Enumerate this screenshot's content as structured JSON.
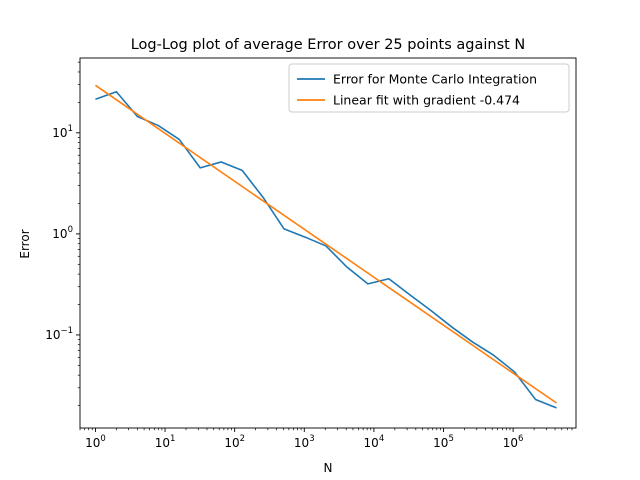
{
  "chart_data": {
    "type": "line",
    "title": "Log-Log plot of average Error over 25 points against N",
    "xlabel": "N",
    "ylabel": "Error",
    "xscale": "log",
    "yscale": "log",
    "xlim": [
      0.6,
      8000000
    ],
    "ylim": [
      0.012,
      55
    ],
    "legend_position": "top-right",
    "grid": false,
    "x_ticks": [
      {
        "value": 1,
        "base": "10",
        "exp": "0"
      },
      {
        "value": 10,
        "base": "10",
        "exp": "1"
      },
      {
        "value": 100,
        "base": "10",
        "exp": "2"
      },
      {
        "value": 1000,
        "base": "10",
        "exp": "3"
      },
      {
        "value": 10000,
        "base": "10",
        "exp": "4"
      },
      {
        "value": 100000,
        "base": "10",
        "exp": "5"
      },
      {
        "value": 1000000,
        "base": "10",
        "exp": "6"
      }
    ],
    "y_ticks": [
      {
        "value": 0.1,
        "base": "10",
        "exp": "−1"
      },
      {
        "value": 1,
        "base": "10",
        "exp": "0"
      },
      {
        "value": 10,
        "base": "10",
        "exp": "1"
      }
    ],
    "series": [
      {
        "name": "Error for Monte Carlo Integration",
        "color": "#1f77b4",
        "x": [
          1,
          2,
          4,
          8,
          16,
          32,
          64,
          128,
          256,
          512,
          1024,
          2048,
          4096,
          8192,
          16384,
          32768,
          65536,
          131072,
          262144,
          524288,
          1048576,
          2097152,
          4194304
        ],
        "y": [
          21.5,
          25.5,
          14.5,
          11.8,
          8.6,
          4.5,
          5.15,
          4.25,
          2.3,
          1.12,
          0.93,
          0.76,
          0.47,
          0.32,
          0.36,
          0.25,
          0.175,
          0.12,
          0.085,
          0.063,
          0.043,
          0.023,
          0.019
        ]
      },
      {
        "name": "Linear fit with gradient -0.474",
        "color": "#ff7f0e",
        "x": [
          1,
          4194304
        ],
        "y": [
          29.5,
          0.0212
        ]
      }
    ]
  }
}
